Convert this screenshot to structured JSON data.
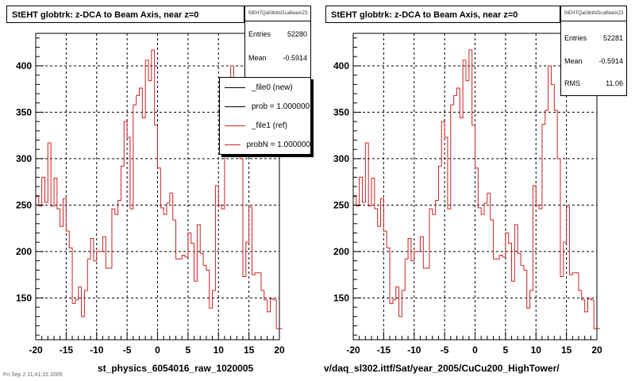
{
  "chart_data": [
    {
      "type": "histogram",
      "title": "StEHT globtrk: z-DCA to Beam Axis, near z=0",
      "stats_name": "StEHTQaGlbtrkDcaBeamZ3",
      "stats": [
        {
          "label": "Entries",
          "value": "52280"
        },
        {
          "label": "Mean",
          "value": "-0.5914"
        }
      ],
      "xlabel": "st_physics_6054016_raw_1020005",
      "xlim": [
        -20,
        20
      ],
      "ylim": [
        105,
        435
      ],
      "xticks": [
        -20,
        -15,
        -10,
        -5,
        0,
        5,
        10,
        15,
        20
      ],
      "yticks": [
        150,
        200,
        250,
        300,
        350,
        400
      ],
      "grid": true,
      "bin_width": 0.5,
      "legend": [
        {
          "label": "_file0 (new)",
          "color": "#000000"
        },
        {
          "label": "prob = 1.000000",
          "color": "#000000"
        },
        {
          "label": "_file1 (ref)",
          "color": "#cc2222"
        },
        {
          "label": "probN = 1.000000",
          "color": "#cc2222"
        }
      ],
      "series": [
        {
          "color": "#cc2222",
          "values": [
            259,
            249,
            280,
            253,
            317,
            249,
            279,
            246,
            227,
            257,
            222,
            204,
            144,
            148,
            162,
            130,
            158,
            192,
            214,
            190,
            200,
            200,
            216,
            182,
            182,
            246,
            240,
            255,
            292,
            340,
            323,
            246,
            358,
            368,
            376,
            344,
            406,
            384,
            417,
            336,
            290,
            247,
            240,
            252,
            263,
            234,
            192,
            192,
            196,
            194,
            220,
            209,
            168,
            229,
            198,
            185,
            180,
            139,
            158,
            271,
            250,
            246,
            337,
            352,
            400,
            380,
            352,
            300,
            173,
            210,
            248,
            175,
            177,
            177,
            158,
            148,
            135,
            149,
            148,
            117,
            117
          ]
        }
      ]
    },
    {
      "type": "histogram",
      "title": "StEHT globtrk: z-DCA to Beam Axis, near z=0",
      "stats_name": "StEHTQaGlbtrkDcaBeamZ3",
      "stats": [
        {
          "label": "Entries",
          "value": "52281"
        },
        {
          "label": "Mean",
          "value": "-0.5914"
        },
        {
          "label": "RMS",
          "value": "11.06"
        }
      ],
      "xlabel": "v/daq_sl302.ittf/Sat/year_2005/CuCu200_HighTower/",
      "xlim": [
        -20,
        20
      ],
      "ylim": [
        105,
        435
      ],
      "xticks": [
        -20,
        -15,
        -10,
        -5,
        0,
        5,
        10,
        15,
        20
      ],
      "yticks": [
        150,
        200,
        250,
        300,
        350,
        400
      ],
      "grid": true,
      "bin_width": 0.5,
      "series": [
        {
          "color": "#cc2222",
          "values": [
            259,
            249,
            280,
            253,
            317,
            249,
            279,
            246,
            227,
            257,
            222,
            204,
            144,
            148,
            162,
            130,
            158,
            192,
            214,
            190,
            200,
            200,
            216,
            182,
            182,
            246,
            240,
            255,
            292,
            340,
            323,
            246,
            358,
            368,
            376,
            344,
            406,
            384,
            417,
            336,
            290,
            247,
            240,
            252,
            263,
            234,
            192,
            192,
            196,
            194,
            220,
            209,
            168,
            229,
            198,
            185,
            180,
            139,
            158,
            271,
            250,
            246,
            337,
            352,
            400,
            380,
            352,
            300,
            173,
            210,
            248,
            175,
            177,
            177,
            158,
            148,
            135,
            149,
            148,
            117,
            117
          ]
        }
      ]
    }
  ],
  "footer_fragment": "Fri Sep 2 11:41:15 2005"
}
